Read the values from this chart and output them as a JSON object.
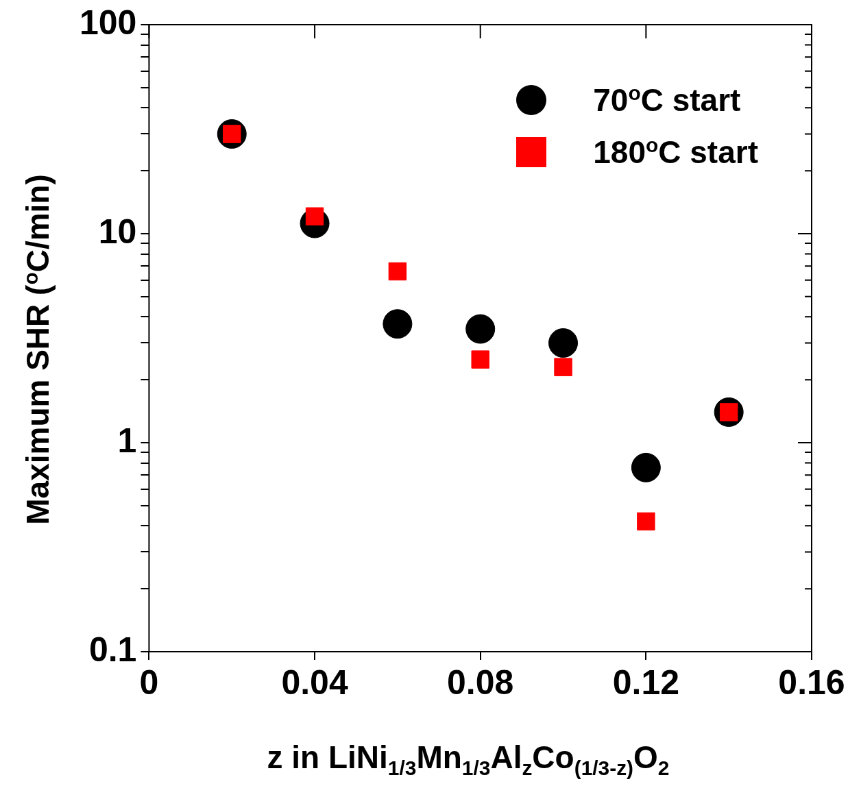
{
  "chart_data": {
    "type": "scatter",
    "xlabel": "z in LiNi$_{1/3}$Mn$_{1/3}$Al$_{z}$Co$_{(1/3-z)}$O$_{2}$",
    "ylabel": "Maximum SHR ($^{o}$C/min)",
    "x": [
      0.02,
      0.04,
      0.06,
      0.08,
      0.1,
      0.12,
      0.14
    ],
    "series": [
      {
        "name": "70$^{o}$C start",
        "color": "#000000",
        "marker": "circle",
        "values": [
          30,
          11.2,
          3.7,
          3.5,
          3.0,
          0.76,
          1.4
        ]
      },
      {
        "name": "180$^{o}$C start",
        "color": "#ff0000",
        "marker": "square",
        "values": [
          30,
          12.1,
          6.6,
          2.5,
          2.3,
          0.42,
          1.4
        ]
      }
    ],
    "log": "y",
    "xlim": [
      0,
      0.16
    ],
    "xticks": [
      0,
      0.04,
      0.08,
      0.12,
      0.16
    ],
    "ylim": [
      0.1,
      100
    ],
    "yticks": [
      0.1,
      {
        "value": 0.2,
        "label": null
      },
      {
        "value": 0.3,
        "label": null
      },
      {
        "value": 0.4,
        "label": null
      },
      {
        "value": 0.5,
        "label": null
      },
      {
        "value": 0.6,
        "label": null
      },
      {
        "value": 0.7,
        "label": null
      },
      {
        "value": 0.8,
        "label": null
      },
      {
        "value": 0.9,
        "label": null
      },
      1,
      {
        "value": 2,
        "label": null
      },
      {
        "value": 3,
        "label": null
      },
      {
        "value": 4,
        "label": null
      },
      {
        "value": 5,
        "label": null
      },
      {
        "value": 6,
        "label": null
      },
      {
        "value": 7,
        "label": null
      },
      {
        "value": 8,
        "label": null
      },
      {
        "value": 9,
        "label": null
      },
      10,
      {
        "value": 20,
        "label": null
      },
      {
        "value": 30,
        "label": null
      },
      {
        "value": 40,
        "label": null
      },
      {
        "value": 50,
        "label": null
      },
      {
        "value": 60,
        "label": null
      },
      {
        "value": 70,
        "label": null
      },
      {
        "value": 80,
        "label": null
      },
      {
        "value": 90,
        "label": null
      },
      100
    ],
    "grid": false,
    "legend": "top right"
  }
}
